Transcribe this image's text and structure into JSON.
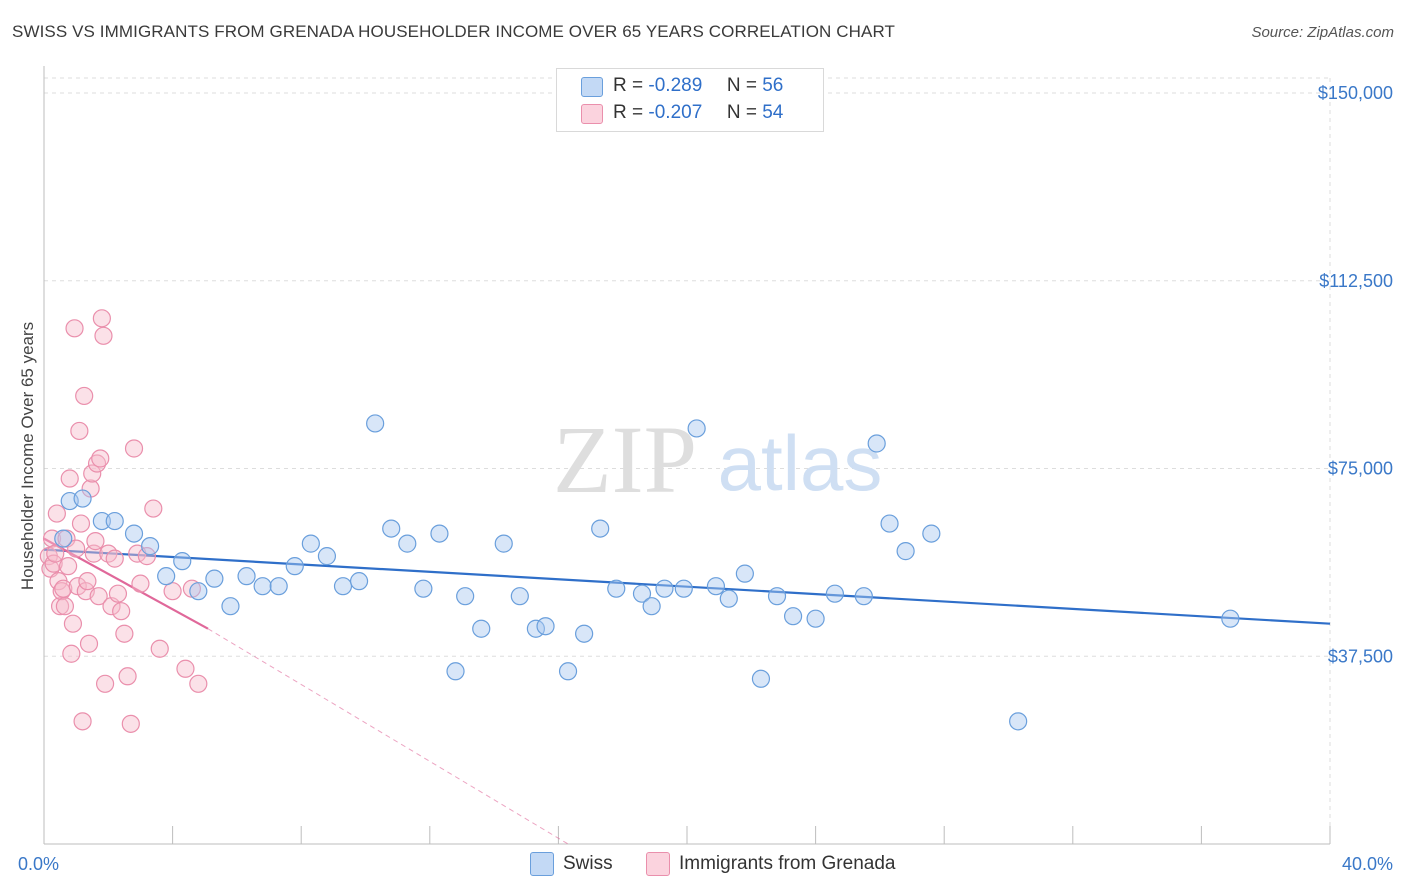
{
  "title": "SWISS VS IMMIGRANTS FROM GRENADA HOUSEHOLDER INCOME OVER 65 YEARS CORRELATION CHART",
  "source": "Source: ZipAtlas.com",
  "watermark": {
    "zip": "ZIP",
    "atlas": "atlas"
  },
  "legend_top": [
    {
      "r_label": "R =",
      "r_value": "-0.289",
      "n_label": "N =",
      "n_value": "56"
    },
    {
      "r_label": "R =",
      "r_value": "-0.207",
      "n_label": "N =",
      "n_value": "54"
    }
  ],
  "legend_bottom": [
    {
      "label": "Swiss"
    },
    {
      "label": "Immigrants from Grenada"
    }
  ],
  "colors": {
    "swiss_fill": "#a9c8ef",
    "swiss_stroke": "#6a9fdc",
    "swiss_line": "#2f6fc9",
    "grenada_fill": "#f6bccb",
    "grenada_stroke": "#ea8fac",
    "grenada_line": "#e0689a",
    "tick": "#3a78c8",
    "grid": "#dddddd"
  },
  "chart_data": {
    "type": "scatter",
    "title": "SWISS VS IMMIGRANTS FROM GRENADA HOUSEHOLDER INCOME OVER 65 YEARS CORRELATION CHART",
    "xlabel": "",
    "ylabel": "Householder Income Over 65 years",
    "xlim": [
      0,
      40
    ],
    "ylim": [
      0,
      153000
    ],
    "y_ticks": [
      {
        "value": 37500,
        "label": "$37,500"
      },
      {
        "value": 75000,
        "label": "$75,000"
      },
      {
        "value": 112500,
        "label": "$112,500"
      },
      {
        "value": 150000,
        "label": "$150,000"
      }
    ],
    "x_ticks": [
      {
        "value": 0,
        "label": "0.0%"
      },
      {
        "value": 40,
        "label": "40.0%"
      }
    ],
    "grid": true,
    "series": [
      {
        "name": "Swiss",
        "r": -0.289,
        "n": 56,
        "trend": {
          "x": [
            0,
            40
          ],
          "y": [
            58800,
            44000
          ],
          "dashed_to": null
        },
        "points": [
          [
            0.6,
            61000
          ],
          [
            0.8,
            68500
          ],
          [
            1.2,
            69000
          ],
          [
            1.8,
            64500
          ],
          [
            2.2,
            64500
          ],
          [
            2.8,
            62000
          ],
          [
            3.3,
            59500
          ],
          [
            3.8,
            53500
          ],
          [
            4.3,
            56500
          ],
          [
            4.8,
            50500
          ],
          [
            5.3,
            53000
          ],
          [
            5.8,
            47500
          ],
          [
            6.3,
            53500
          ],
          [
            6.8,
            51500
          ],
          [
            7.3,
            51500
          ],
          [
            7.8,
            55500
          ],
          [
            8.3,
            60000
          ],
          [
            8.8,
            57500
          ],
          [
            9.3,
            51500
          ],
          [
            9.8,
            52500
          ],
          [
            10.3,
            84000
          ],
          [
            10.8,
            63000
          ],
          [
            11.3,
            60000
          ],
          [
            11.8,
            51000
          ],
          [
            12.3,
            62000
          ],
          [
            12.8,
            34500
          ],
          [
            13.1,
            49500
          ],
          [
            13.6,
            43000
          ],
          [
            14.3,
            60000
          ],
          [
            14.8,
            49500
          ],
          [
            15.3,
            43000
          ],
          [
            15.6,
            43500
          ],
          [
            16.3,
            34500
          ],
          [
            16.8,
            42000
          ],
          [
            17.3,
            63000
          ],
          [
            17.8,
            51000
          ],
          [
            18.6,
            50000
          ],
          [
            18.9,
            47500
          ],
          [
            19.3,
            51000
          ],
          [
            19.9,
            51000
          ],
          [
            20.3,
            83000
          ],
          [
            20.9,
            51500
          ],
          [
            21.3,
            49000
          ],
          [
            21.8,
            54000
          ],
          [
            22.3,
            33000
          ],
          [
            22.8,
            49500
          ],
          [
            23.3,
            45500
          ],
          [
            24.0,
            45000
          ],
          [
            24.6,
            50000
          ],
          [
            25.5,
            49500
          ],
          [
            25.9,
            80000
          ],
          [
            26.3,
            64000
          ],
          [
            26.8,
            58500
          ],
          [
            27.6,
            62000
          ],
          [
            30.3,
            24500
          ],
          [
            36.9,
            45000
          ]
        ]
      },
      {
        "name": "Immigrants from Grenada",
        "r": -0.207,
        "n": 54,
        "trend": {
          "x": [
            0,
            5.1
          ],
          "y": [
            61000,
            43000
          ],
          "dashed_to": [
            16.3,
            0
          ]
        },
        "points": [
          [
            0.15,
            57500
          ],
          [
            0.2,
            55000
          ],
          [
            0.25,
            61000
          ],
          [
            0.3,
            56000
          ],
          [
            0.35,
            58000
          ],
          [
            0.4,
            66000
          ],
          [
            0.45,
            52500
          ],
          [
            0.5,
            47500
          ],
          [
            0.55,
            50500
          ],
          [
            0.6,
            51000
          ],
          [
            0.65,
            47500
          ],
          [
            0.7,
            61000
          ],
          [
            0.75,
            55500
          ],
          [
            0.8,
            73000
          ],
          [
            0.85,
            38000
          ],
          [
            0.9,
            44000
          ],
          [
            0.95,
            103000
          ],
          [
            1.0,
            59000
          ],
          [
            1.05,
            51500
          ],
          [
            1.1,
            82500
          ],
          [
            1.15,
            64000
          ],
          [
            1.2,
            24500
          ],
          [
            1.25,
            89500
          ],
          [
            1.3,
            50500
          ],
          [
            1.35,
            52500
          ],
          [
            1.4,
            40000
          ],
          [
            1.45,
            71000
          ],
          [
            1.5,
            74000
          ],
          [
            1.55,
            58000
          ],
          [
            1.6,
            60500
          ],
          [
            1.65,
            76000
          ],
          [
            1.7,
            49500
          ],
          [
            1.75,
            77000
          ],
          [
            1.8,
            105000
          ],
          [
            1.85,
            101500
          ],
          [
            1.9,
            32000
          ],
          [
            2.0,
            58000
          ],
          [
            2.1,
            47500
          ],
          [
            2.2,
            57000
          ],
          [
            2.3,
            50000
          ],
          [
            2.4,
            46500
          ],
          [
            2.5,
            42000
          ],
          [
            2.6,
            33500
          ],
          [
            2.7,
            24000
          ],
          [
            2.8,
            79000
          ],
          [
            2.9,
            58000
          ],
          [
            3.0,
            52000
          ],
          [
            3.2,
            57500
          ],
          [
            3.4,
            67000
          ],
          [
            3.6,
            39000
          ],
          [
            4.0,
            50500
          ],
          [
            4.4,
            35000
          ],
          [
            4.8,
            32000
          ],
          [
            4.6,
            51000
          ]
        ]
      }
    ]
  }
}
